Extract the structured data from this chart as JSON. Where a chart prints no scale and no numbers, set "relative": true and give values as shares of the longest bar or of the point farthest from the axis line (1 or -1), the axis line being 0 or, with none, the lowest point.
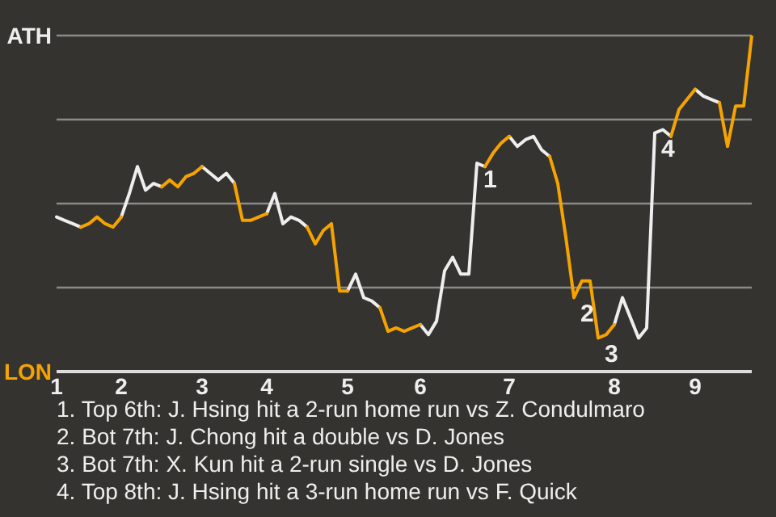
{
  "chart_data": {
    "type": "line",
    "line_style": "solid",
    "marker": "none",
    "grid": "y",
    "relative": true,
    "categories": [
      "1",
      null,
      null,
      null,
      null,
      null,
      null,
      null,
      "2",
      null,
      null,
      null,
      null,
      null,
      null,
      null,
      null,
      null,
      "3",
      null,
      null,
      null,
      null,
      null,
      null,
      null,
      "4",
      null,
      null,
      null,
      null,
      null,
      null,
      null,
      null,
      null,
      "5",
      null,
      null,
      null,
      null,
      null,
      null,
      null,
      null,
      "6",
      null,
      null,
      null,
      null,
      null,
      null,
      null,
      null,
      null,
      null,
      "7",
      null,
      null,
      null,
      null,
      null,
      null,
      null,
      null,
      null,
      null,
      null,
      null,
      "8",
      null,
      null,
      null,
      null,
      null,
      null,
      null,
      null,
      null,
      "9",
      null,
      null,
      null,
      null,
      null,
      null,
      null
    ],
    "series": [
      {
        "color": "#eeeeee",
        "values": [
          0.46,
          0.45,
          0.44,
          0.43,
          null,
          null,
          null,
          null,
          0.46,
          0.53,
          0.61,
          0.54,
          0.56,
          0.55,
          null,
          null,
          null,
          null,
          0.61,
          0.59,
          0.57,
          0.59,
          0.56,
          null,
          null,
          null,
          0.47,
          0.53,
          0.44,
          0.46,
          0.45,
          0.43,
          null,
          null,
          null,
          null,
          0.24,
          0.29,
          0.22,
          0.21,
          0.19,
          null,
          null,
          null,
          null,
          0.14,
          0.11,
          0.15,
          0.3,
          0.34,
          0.29,
          0.29,
          0.62,
          0.61,
          null,
          null,
          0.7,
          0.67,
          0.69,
          0.7,
          0.66,
          0.64,
          null,
          null,
          null,
          null,
          null,
          null,
          null,
          0.14,
          0.22,
          0.16,
          0.1,
          0.13,
          0.71,
          0.72,
          0.7,
          null,
          null,
          0.84,
          0.82,
          0.81,
          0.8,
          null,
          null,
          null,
          null
        ]
      },
      {
        "color": "#f5a300",
        "values": [
          null,
          null,
          null,
          0.43,
          0.44,
          0.46,
          0.44,
          0.43,
          0.46,
          null,
          null,
          null,
          null,
          0.55,
          0.57,
          0.55,
          0.58,
          0.59,
          0.61,
          null,
          null,
          null,
          0.56,
          0.45,
          0.45,
          0.46,
          0.47,
          null,
          null,
          null,
          null,
          0.43,
          0.38,
          0.42,
          0.44,
          0.24,
          0.24,
          null,
          null,
          null,
          0.19,
          0.12,
          0.13,
          0.12,
          0.13,
          0.14,
          null,
          null,
          null,
          null,
          null,
          null,
          null,
          0.61,
          0.65,
          0.68,
          0.7,
          null,
          null,
          null,
          null,
          0.64,
          0.56,
          0.4,
          0.22,
          0.27,
          0.27,
          0.1,
          0.11,
          0.14,
          null,
          null,
          null,
          null,
          null,
          null,
          0.7,
          0.78,
          0.81,
          0.84,
          null,
          null,
          0.8,
          0.67,
          0.79,
          0.79,
          1
        ]
      }
    ],
    "annotations": [
      "ATH",
      "LON",
      {
        "text": "1",
        "y": 0.62
      },
      {
        "text": "2",
        "y": 0.22
      },
      {
        "text": "3",
        "y": 0.1
      },
      {
        "text": "4",
        "y": 0.71
      },
      "1. Top 6th: J. Hsing hit a 2-run home run vs Z. Condulmaro",
      "2. Bot 7th: J. Chong hit a double vs D. Jones",
      "3. Bot 7th: X. Kun hit a 2-run single vs D. Jones",
      "4. Top 8th: J. Hsing hit a 3-run home run vs F. Quick"
    ]
  }
}
